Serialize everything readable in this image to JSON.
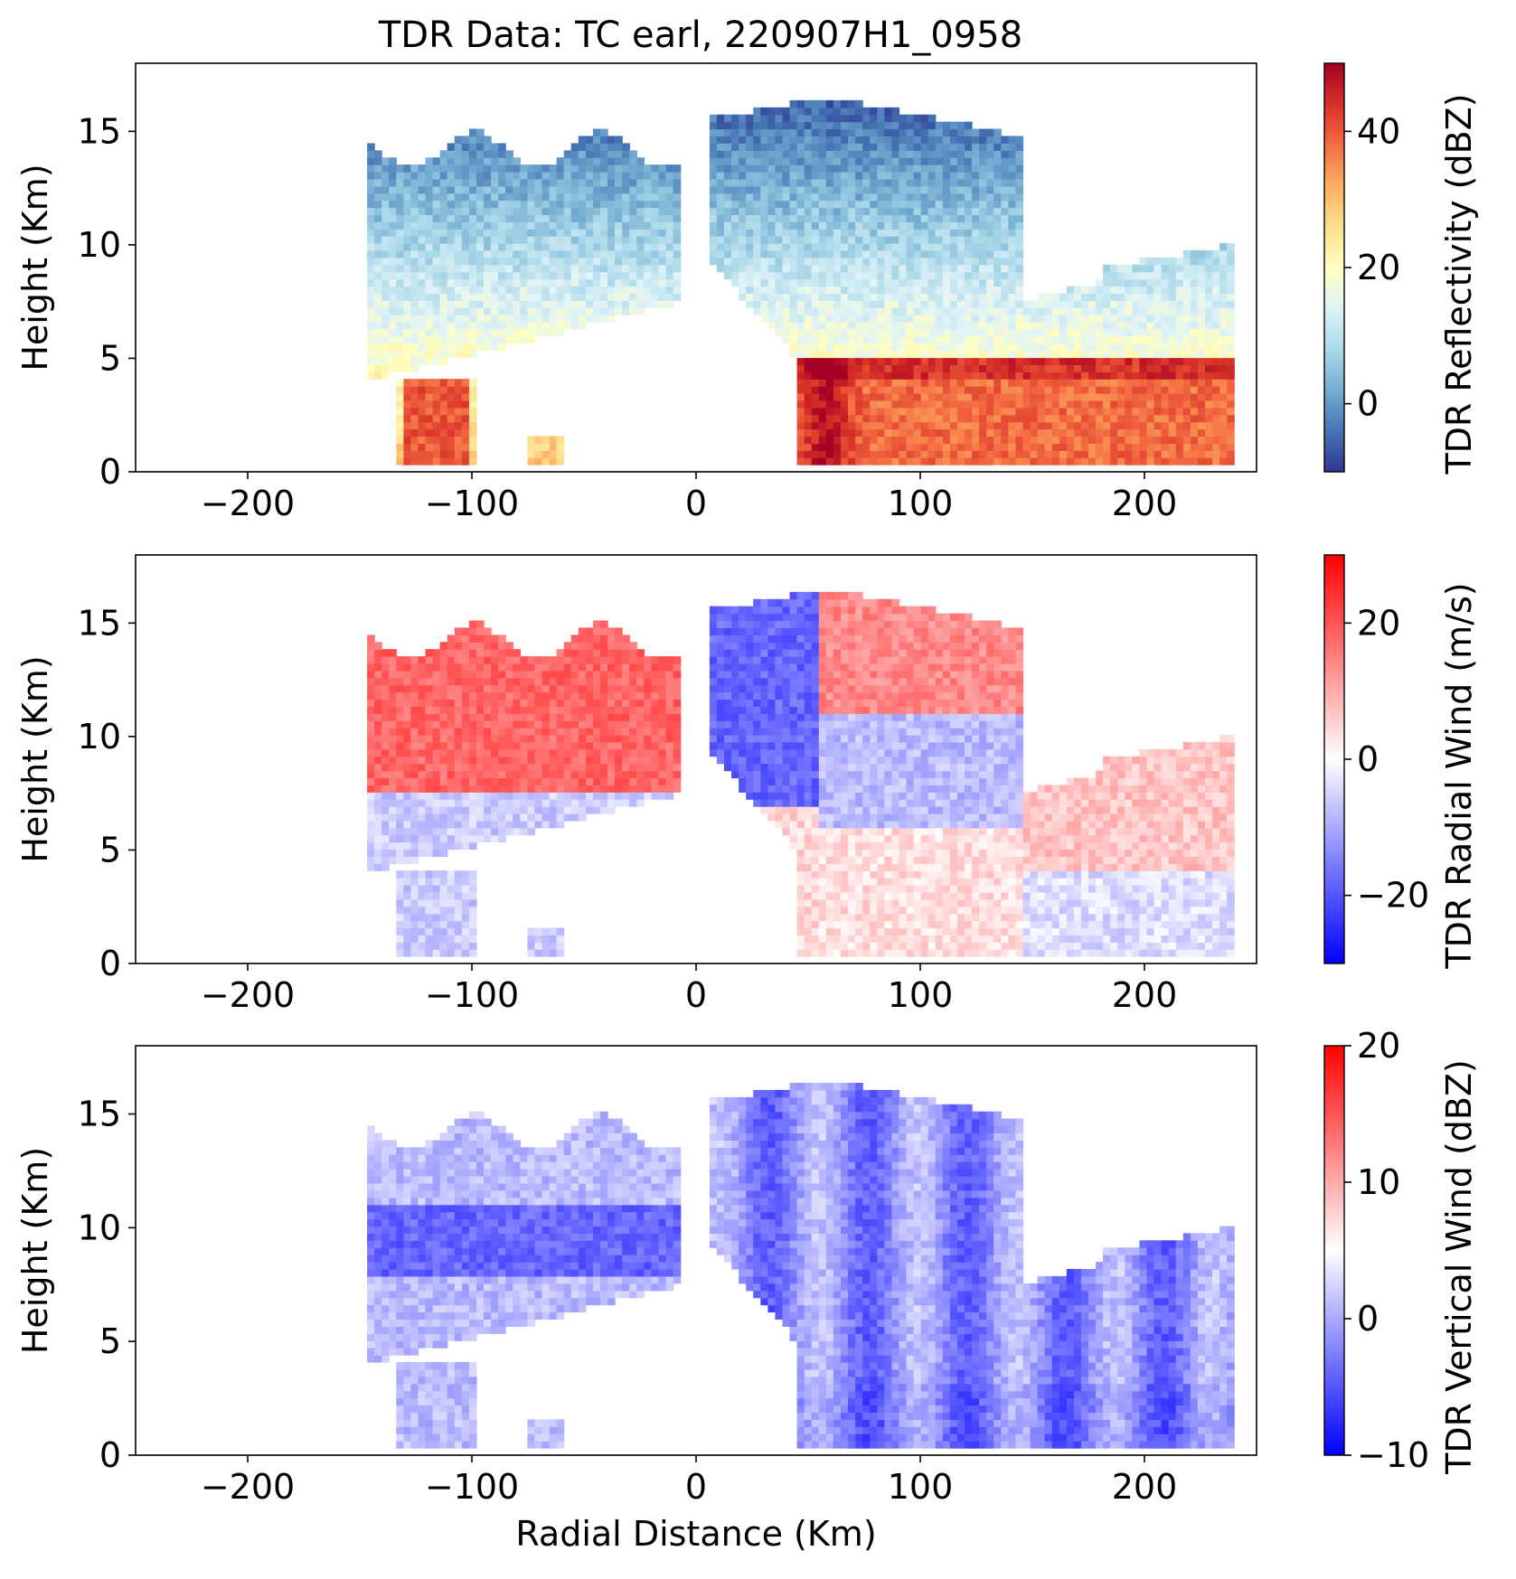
{
  "title": "TDR Data: TC earl, 220907H1_0958",
  "chart_data": [
    {
      "type": "heatmap",
      "xlabel": "",
      "ylabel": "Height (Km)",
      "xlim": [
        -250,
        250
      ],
      "ylim": [
        0,
        18
      ],
      "xticks": [
        -200,
        -100,
        0,
        100,
        200
      ],
      "xtick_labels": [
        "−200",
        "−100",
        "0",
        "100",
        "200"
      ],
      "yticks": [
        0,
        5,
        10,
        15
      ],
      "ytick_labels": [
        "0",
        "5",
        "10",
        "15"
      ],
      "colorbar": {
        "label": "TDR Reflectivity (dBZ)",
        "range": [
          -10,
          50
        ],
        "ticks": [
          0,
          20,
          40
        ],
        "tick_labels": [
          "0",
          "20",
          "40"
        ],
        "colormap": "RdYlBu_r",
        "colors": [
          "#313695",
          "#4575b4",
          "#74add1",
          "#abd9e9",
          "#e0f3f8",
          "#ffffbf",
          "#fee090",
          "#fdae61",
          "#f46d43",
          "#d73027",
          "#a50026"
        ]
      }
    },
    {
      "type": "heatmap",
      "xlabel": "",
      "ylabel": "Height (Km)",
      "xlim": [
        -250,
        250
      ],
      "ylim": [
        0,
        18
      ],
      "xticks": [
        -200,
        -100,
        0,
        100,
        200
      ],
      "xtick_labels": [
        "−200",
        "−100",
        "0",
        "100",
        "200"
      ],
      "yticks": [
        0,
        5,
        10,
        15
      ],
      "ytick_labels": [
        "0",
        "5",
        "10",
        "15"
      ],
      "colorbar": {
        "label": "TDR Radial Wind (m/s)",
        "range": [
          -30,
          30
        ],
        "ticks": [
          -20,
          0,
          20
        ],
        "tick_labels": [
          "−20",
          "0",
          "20"
        ],
        "colormap": "bwr",
        "colors": [
          "#0000ff",
          "#ffffff",
          "#ff0000"
        ]
      }
    },
    {
      "type": "heatmap",
      "xlabel": "Radial Distance (Km)",
      "ylabel": "Height (Km)",
      "xlim": [
        -250,
        250
      ],
      "ylim": [
        0,
        18
      ],
      "xticks": [
        -200,
        -100,
        0,
        100,
        200
      ],
      "xtick_labels": [
        "−200",
        "−100",
        "0",
        "100",
        "200"
      ],
      "yticks": [
        0,
        5,
        10,
        15
      ],
      "ytick_labels": [
        "0",
        "5",
        "10",
        "15"
      ],
      "colorbar": {
        "label": "TDR Vertical Wind (dBZ)",
        "range": [
          -10,
          20
        ],
        "ticks": [
          -10,
          0,
          10,
          20
        ],
        "tick_labels": [
          "−10",
          "0",
          "10",
          "20"
        ],
        "colormap": "bwr",
        "colors": [
          "#0000ff",
          "#ffffff",
          "#ff0000"
        ]
      }
    }
  ]
}
